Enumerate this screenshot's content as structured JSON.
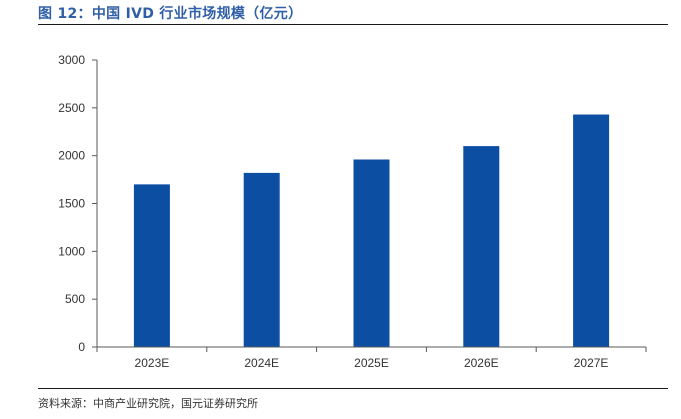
{
  "title": "图 12：中国 IVD 行业市场规模（亿元）",
  "source": "资料来源：中商产业研究院，国元证券研究所",
  "colors": {
    "bar": "#0c4ea2",
    "axis": "#595959",
    "title": "#2f5fa7"
  },
  "chart_data": {
    "type": "bar",
    "title": "",
    "xlabel": "",
    "ylabel": "",
    "categories": [
      "2023E",
      "2024E",
      "2025E",
      "2026E",
      "2027E"
    ],
    "values": [
      1700,
      1820,
      1960,
      2100,
      2430
    ],
    "ylim": [
      0,
      3000
    ],
    "yticks": [
      0,
      500,
      1000,
      1500,
      2000,
      2500,
      3000
    ],
    "grid": false,
    "legend": "none"
  }
}
